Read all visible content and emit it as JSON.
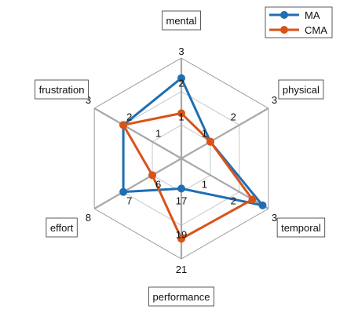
{
  "chart_data": {
    "type": "radar",
    "axes": [
      {
        "label": "mental",
        "ticks": [
          "1",
          "2",
          "3"
        ],
        "range": [
          0,
          3
        ]
      },
      {
        "label": "physical",
        "ticks": [
          "1",
          "2",
          "3"
        ],
        "range": [
          0,
          3
        ]
      },
      {
        "label": "temporal",
        "ticks": [
          "1",
          "2",
          "3"
        ],
        "range": [
          0,
          3
        ]
      },
      {
        "label": "performance",
        "ticks": [
          "17",
          "19",
          "21"
        ],
        "range": [
          15,
          21
        ]
      },
      {
        "label": "effort",
        "ticks": [
          "6",
          "7",
          "8"
        ],
        "range": [
          5,
          8
        ]
      },
      {
        "label": "frustration",
        "ticks": [
          "1",
          "2",
          "3"
        ],
        "range": [
          0,
          3
        ]
      }
    ],
    "series": [
      {
        "name": "MA",
        "color": "#1f6fb2",
        "values": [
          2.4,
          1.0,
          2.8,
          16.8,
          7.0,
          2.0
        ]
      },
      {
        "name": "CMA",
        "color": "#d95319",
        "values": [
          1.35,
          1.0,
          2.45,
          19.8,
          6.0,
          2.0
        ]
      }
    ],
    "grid": true,
    "grid_rings": 3,
    "legend_position": "top-right"
  }
}
